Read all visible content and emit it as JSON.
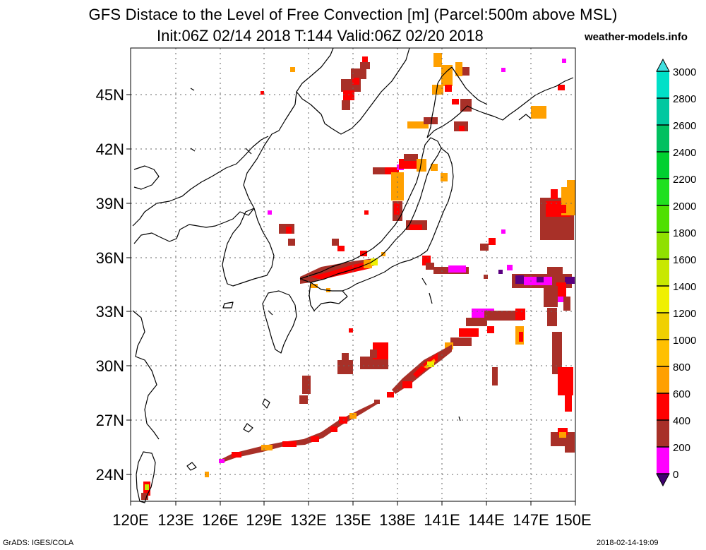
{
  "title": {
    "line1": "GFS Distace to the Level of Free Convection [m] (Parcel:500m above MSL)",
    "line2": "Init:06Z 02/14 2018 T:144 Valid:06Z 02/20 2018"
  },
  "site": "weather-models.info",
  "footer": {
    "left": "GrADS: IGES/COLA",
    "right": "2018-02-14-19:09"
  },
  "map": {
    "lon_range": [
      120,
      150
    ],
    "lat_range": [
      22.5,
      47.5
    ],
    "lon_labels": [
      "120E",
      "123E",
      "126E",
      "129E",
      "132E",
      "135E",
      "138E",
      "141E",
      "144E",
      "147E",
      "150E"
    ],
    "lon_values": [
      120,
      123,
      126,
      129,
      132,
      135,
      138,
      141,
      144,
      147,
      150
    ],
    "lat_labels": [
      "45N",
      "42N",
      "39N",
      "36N",
      "33N",
      "30N",
      "27N",
      "24N"
    ],
    "lat_values": [
      45,
      42,
      39,
      36,
      33,
      30,
      27,
      24
    ],
    "gridlines": true
  },
  "colorbar": {
    "labels": [
      "3000",
      "2800",
      "2600",
      "2400",
      "2200",
      "2000",
      "1800",
      "1600",
      "1400",
      "1200",
      "1000",
      "800",
      "600",
      "400",
      "200",
      "0"
    ],
    "colors": [
      "#00e0c8",
      "#00c8a0",
      "#00c060",
      "#00d030",
      "#20e020",
      "#50e000",
      "#90e000",
      "#c8e800",
      "#f0f000",
      "#f0d000",
      "#ffc000",
      "#ffa000",
      "#ff0000",
      "#a83028",
      "#ff00ff",
      "#5a0080"
    ],
    "top_arrow_color": "#40e0e0",
    "bottom_arrow_color": "#400070"
  },
  "legend_colors": {
    "lfc_0_200": "#5a0080",
    "lfc_200_400": "#ff00ff",
    "lfc_400_600": "#a83028",
    "lfc_600_800": "#ff0000",
    "lfc_800_1000": "#ffa000",
    "lfc_1000_1200": "#ffc000",
    "lfc_1400_1600": "#f0f000",
    "lfc_1600_1800": "#c8e800"
  }
}
